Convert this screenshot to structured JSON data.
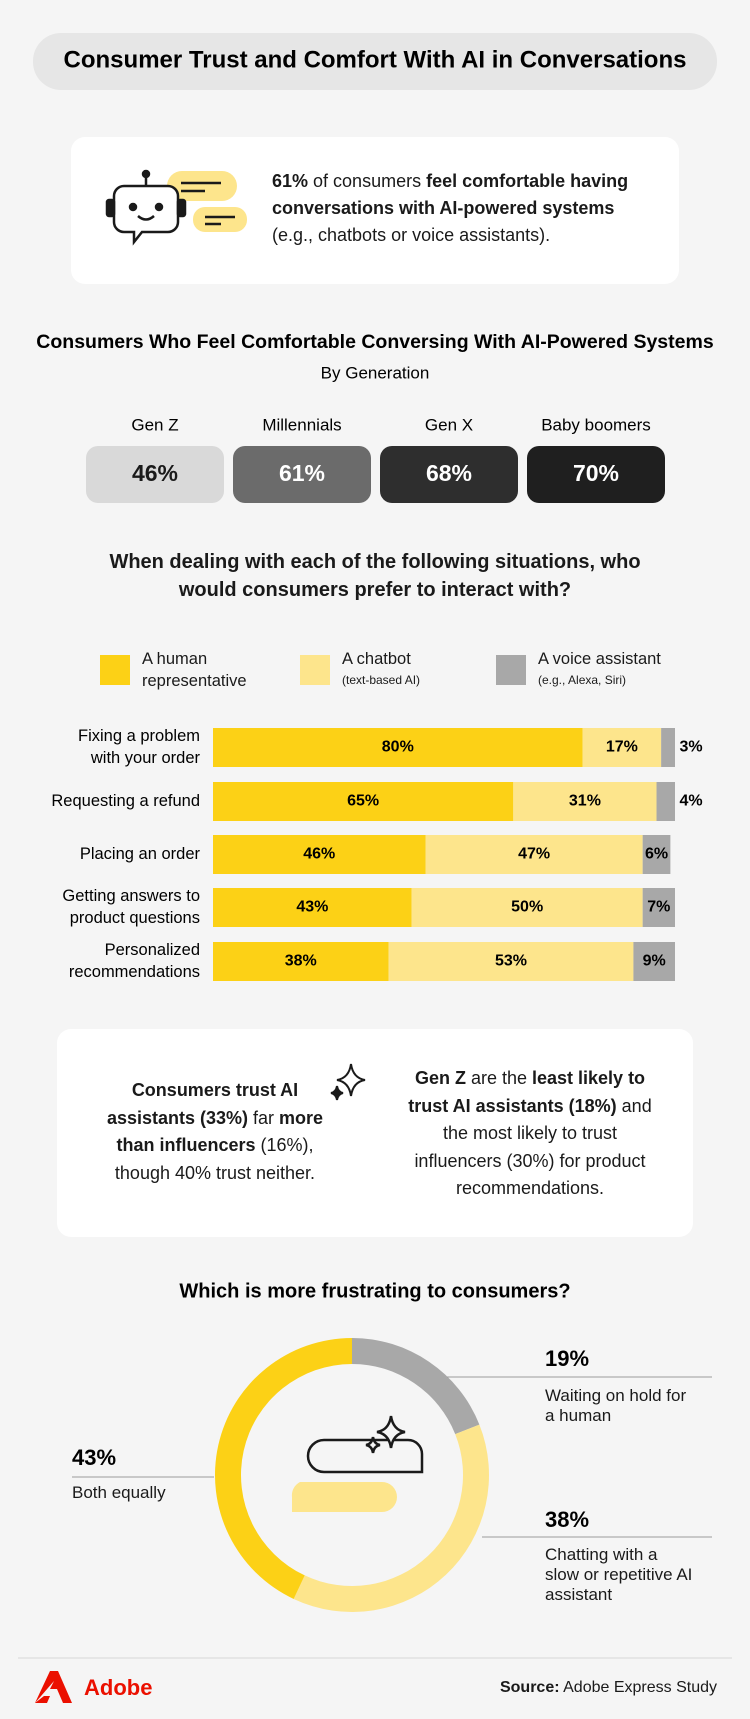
{
  "title": "Consumer Trust and Comfort With AI in Conversations",
  "callout": {
    "runs": [
      {
        "text": "61%",
        "bold": true
      },
      {
        "text": " of consumers ",
        "bold": false
      },
      {
        "text": "feel comfortable having conversations with AI-powered systems",
        "bold": true
      },
      {
        "text": " (e.g., chatbots or voice assistants).",
        "bold": false
      }
    ]
  },
  "chart_data": [
    {
      "type": "tiles",
      "title": "Consumers Who Feel Comfortable Conversing With AI-Powered Systems",
      "subtitle": "By Generation",
      "categories": [
        "Gen Z",
        "Millennials",
        "Gen X",
        "Baby boomers"
      ],
      "values": [
        46,
        61,
        68,
        70
      ],
      "value_labels": [
        "46%",
        "61%",
        "68%",
        "70%"
      ],
      "colors": [
        "#d9d9d9",
        "#6b6b6b",
        "#2e2e2e",
        "#1f1f1f"
      ],
      "label_colors": [
        "#1a1a1a",
        "#ffffff",
        "#ffffff",
        "#ffffff"
      ]
    },
    {
      "type": "stacked_bar",
      "title": "When dealing with each of the following situations, who would consumers prefer to interact with?",
      "categories": [
        [
          "Fixing a problem",
          "with your order"
        ],
        [
          "Requesting a refund"
        ],
        [
          "Placing an order"
        ],
        [
          "Getting answers to",
          "product questions"
        ],
        [
          "Personalized",
          "recommendations"
        ]
      ],
      "xlim": [
        0,
        100
      ],
      "series": [
        {
          "name": "A human representative",
          "color": "#fcd116",
          "values": [
            80,
            65,
            46,
            43,
            38
          ],
          "value_labels": [
            "80%",
            "65%",
            "46%",
            "43%",
            "38%"
          ]
        },
        {
          "name": "A chatbot",
          "note": "(text-based AI)",
          "color": "#fde58c",
          "values": [
            17,
            31,
            47,
            50,
            53
          ],
          "value_labels": [
            "17%",
            "31%",
            "47%",
            "50%",
            "53%"
          ]
        },
        {
          "name": "A voice assistant",
          "note": "(e.g., Alexa, Siri)",
          "color": "#a8a8a8",
          "values": [
            3,
            4,
            6,
            7,
            9
          ],
          "value_labels": [
            "3%",
            "4%",
            "6%",
            "7%",
            "9%"
          ]
        }
      ]
    },
    {
      "type": "donut",
      "title": "Which is more frustrating to consumers?",
      "labels": [
        "Waiting on hold for a human",
        "Chatting with a slow or repetitive AI assistant",
        "Both equally"
      ],
      "values": [
        19,
        38,
        43
      ],
      "value_labels": [
        "19%",
        "38%",
        "43%"
      ],
      "colors": [
        "#a8a8a8",
        "#fde58c",
        "#fcd116"
      ]
    }
  ],
  "trust": {
    "left": [
      {
        "text": "Consumers trust AI assistants (33%)",
        "bold": true
      },
      {
        "text": " far ",
        "bold": false
      },
      {
        "text": "more than influencers",
        "bold": true
      },
      {
        "text": " (16%), though 40% trust neither.",
        "bold": false
      }
    ],
    "right": [
      {
        "text": "Gen Z",
        "bold": true
      },
      {
        "text": " are the ",
        "bold": false
      },
      {
        "text": "least likely to trust AI assistants (18%)",
        "bold": true
      },
      {
        "text": " and the most likely to trust influencers (30%) for product recommendations.",
        "bold": false
      }
    ]
  },
  "footer": {
    "brand": "Adobe",
    "source": [
      {
        "text": "Source:",
        "bold": true
      },
      {
        "text": " Adobe Express Study",
        "bold": false
      }
    ]
  }
}
